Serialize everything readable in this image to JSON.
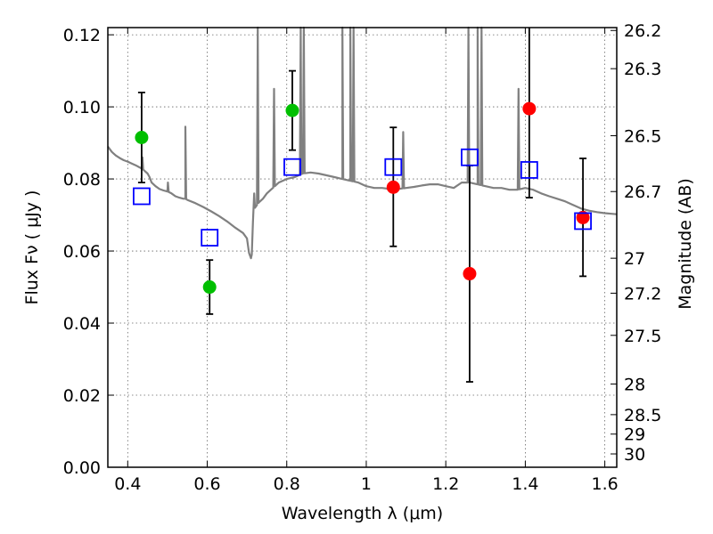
{
  "chart_data": {
    "type": "scatter",
    "xlabel": "Wavelength  λ (μm)",
    "ylabel": "Flux  Fν  ( μJy )",
    "y2label": "Magnitude (AB)",
    "xlim": [
      0.35,
      1.63
    ],
    "ylim": [
      0.0,
      0.122
    ],
    "grid": true,
    "xticks": [
      0.4,
      0.6,
      0.8,
      1.0,
      1.2,
      1.4,
      1.6
    ],
    "xtick_labels": [
      "0.4",
      "0.6",
      "0.8",
      "1",
      "1.2",
      "1.4",
      "1.6"
    ],
    "yticks": [
      0.0,
      0.02,
      0.04,
      0.06,
      0.08,
      0.1,
      0.12
    ],
    "ytick_labels": [
      "0.00",
      "0.02",
      "0.04",
      "0.06",
      "0.08",
      "0.10",
      "0.12"
    ],
    "y2ticks": [
      {
        "label": "26.2",
        "flux": 0.1212
      },
      {
        "label": "26.3",
        "flux": 0.1106
      },
      {
        "label": "26.5",
        "flux": 0.092
      },
      {
        "label": "26.7",
        "flux": 0.0765
      },
      {
        "label": "27",
        "flux": 0.058
      },
      {
        "label": "27.2",
        "flux": 0.0483
      },
      {
        "label": "27.5",
        "flux": 0.0366
      },
      {
        "label": "28",
        "flux": 0.0231
      },
      {
        "label": "28.5",
        "flux": 0.0146
      },
      {
        "label": "29",
        "flux": 0.0092
      },
      {
        "label": "30",
        "flux": 0.0037
      }
    ],
    "series": [
      {
        "marker": "circle",
        "color": "#00bf00",
        "points": [
          {
            "x": 0.435,
            "y": 0.0915,
            "err_lo": 0.079,
            "err_hi": 0.104
          },
          {
            "x": 0.606,
            "y": 0.05,
            "err_lo": 0.0425,
            "err_hi": 0.0575
          },
          {
            "x": 0.814,
            "y": 0.099,
            "err_lo": 0.088,
            "err_hi": 0.11
          }
        ]
      },
      {
        "marker": "circle",
        "color": "#ff0000",
        "points": [
          {
            "x": 1.068,
            "y": 0.0777,
            "err_lo": 0.0613,
            "err_hi": 0.0943
          },
          {
            "x": 1.26,
            "y": 0.0537,
            "err_lo": 0.0237,
            "err_hi": 0.0837
          },
          {
            "x": 1.41,
            "y": 0.0995,
            "err_lo": 0.0748,
            "err_hi": 0.1225
          },
          {
            "x": 1.545,
            "y": 0.0693,
            "err_lo": 0.053,
            "err_hi": 0.0857
          }
        ]
      },
      {
        "marker": "square-open",
        "color": "#0000ff",
        "points": [
          {
            "x": 0.435,
            "y": 0.0752
          },
          {
            "x": 0.606,
            "y": 0.0637
          },
          {
            "x": 0.814,
            "y": 0.0833
          },
          {
            "x": 1.068,
            "y": 0.0833
          },
          {
            "x": 1.26,
            "y": 0.086
          },
          {
            "x": 1.41,
            "y": 0.0825
          },
          {
            "x": 1.545,
            "y": 0.0683
          }
        ]
      }
    ],
    "model_spectrum": {
      "color": "#808080",
      "points": [
        [
          0.35,
          0.089
        ],
        [
          0.36,
          0.0875
        ],
        [
          0.37,
          0.0865
        ],
        [
          0.38,
          0.0858
        ],
        [
          0.39,
          0.0852
        ],
        [
          0.4,
          0.0848
        ],
        [
          0.41,
          0.0843
        ],
        [
          0.42,
          0.0838
        ],
        [
          0.43,
          0.0832
        ],
        [
          0.44,
          0.0825
        ],
        [
          0.45,
          0.0815
        ],
        [
          0.455,
          0.0805
        ],
        [
          0.46,
          0.079
        ],
        [
          0.47,
          0.078
        ],
        [
          0.48,
          0.0772
        ],
        [
          0.49,
          0.0768
        ],
        [
          0.5,
          0.0765
        ],
        [
          0.51,
          0.076
        ],
        [
          0.52,
          0.0752
        ],
        [
          0.53,
          0.0748
        ],
        [
          0.54,
          0.0745
        ],
        [
          0.545,
          0.0745
        ],
        [
          0.55,
          0.0742
        ],
        [
          0.57,
          0.0733
        ],
        [
          0.59,
          0.0722
        ],
        [
          0.61,
          0.071
        ],
        [
          0.63,
          0.0697
        ],
        [
          0.65,
          0.0682
        ],
        [
          0.67,
          0.0665
        ],
        [
          0.69,
          0.065
        ],
        [
          0.7,
          0.0635
        ],
        [
          0.705,
          0.0595
        ],
        [
          0.71,
          0.058
        ],
        [
          0.712,
          0.059
        ],
        [
          0.715,
          0.068
        ],
        [
          0.718,
          0.076
        ],
        [
          0.72,
          0.072
        ],
        [
          0.73,
          0.0735
        ],
        [
          0.74,
          0.0745
        ],
        [
          0.75,
          0.076
        ],
        [
          0.76,
          0.077
        ],
        [
          0.78,
          0.079
        ],
        [
          0.8,
          0.08
        ],
        [
          0.82,
          0.0805
        ],
        [
          0.84,
          0.0815
        ],
        [
          0.86,
          0.0818
        ],
        [
          0.88,
          0.0815
        ],
        [
          0.9,
          0.081
        ],
        [
          0.92,
          0.0805
        ],
        [
          0.94,
          0.08
        ],
        [
          0.96,
          0.0795
        ],
        [
          0.98,
          0.079
        ],
        [
          1.0,
          0.078
        ],
        [
          1.02,
          0.0775
        ],
        [
          1.04,
          0.0775
        ],
        [
          1.06,
          0.0772
        ],
        [
          1.08,
          0.0772
        ],
        [
          1.1,
          0.0775
        ],
        [
          1.12,
          0.0778
        ],
        [
          1.14,
          0.0782
        ],
        [
          1.16,
          0.0785
        ],
        [
          1.18,
          0.0785
        ],
        [
          1.2,
          0.078
        ],
        [
          1.22,
          0.0775
        ],
        [
          1.24,
          0.079
        ],
        [
          1.26,
          0.079
        ],
        [
          1.28,
          0.0785
        ],
        [
          1.3,
          0.078
        ],
        [
          1.32,
          0.0775
        ],
        [
          1.34,
          0.0775
        ],
        [
          1.36,
          0.077
        ],
        [
          1.38,
          0.077
        ],
        [
          1.4,
          0.0775
        ],
        [
          1.42,
          0.077
        ],
        [
          1.44,
          0.076
        ],
        [
          1.46,
          0.0752
        ],
        [
          1.48,
          0.0745
        ],
        [
          1.5,
          0.0738
        ],
        [
          1.52,
          0.0728
        ],
        [
          1.54,
          0.0718
        ],
        [
          1.56,
          0.0712
        ],
        [
          1.58,
          0.0708
        ],
        [
          1.6,
          0.0705
        ],
        [
          1.62,
          0.0703
        ],
        [
          1.63,
          0.0702
        ]
      ],
      "emission_lines": [
        {
          "x": 0.437,
          "peak": 0.086
        },
        {
          "x": 0.501,
          "peak": 0.079
        },
        {
          "x": 0.545,
          "peak": 0.0945
        },
        {
          "x": 0.727,
          "peak": 0.125
        },
        {
          "x": 0.768,
          "peak": 0.105
        },
        {
          "x": 0.835,
          "peak": 0.125
        },
        {
          "x": 0.843,
          "peak": 0.125
        },
        {
          "x": 0.94,
          "peak": 0.125
        },
        {
          "x": 0.96,
          "peak": 0.125
        },
        {
          "x": 0.968,
          "peak": 0.125
        },
        {
          "x": 1.093,
          "peak": 0.093
        },
        {
          "x": 1.257,
          "peak": 0.125
        },
        {
          "x": 1.28,
          "peak": 0.125
        },
        {
          "x": 1.29,
          "peak": 0.125
        },
        {
          "x": 1.383,
          "peak": 0.105
        }
      ]
    }
  }
}
